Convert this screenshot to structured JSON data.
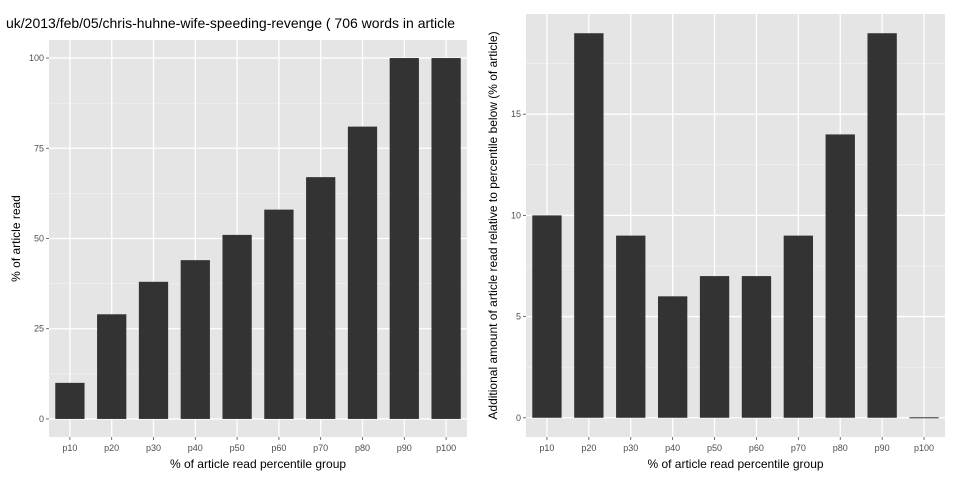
{
  "chart_data": [
    {
      "type": "bar",
      "title": "uk/2013/feb/05/chris-huhne-wife-speeding-revenge ( 706 words in article",
      "xlabel": "% of article read percentile group",
      "ylabel": "% of article read",
      "categories": [
        "p10",
        "p20",
        "p30",
        "p40",
        "p50",
        "p60",
        "p70",
        "p80",
        "p90",
        "p100"
      ],
      "values": [
        10,
        29,
        38,
        44,
        51,
        58,
        67,
        81,
        100,
        100
      ],
      "ylim": [
        -5,
        105
      ],
      "yticks": [
        0,
        25,
        50,
        75,
        100
      ],
      "grid": true,
      "colors": {
        "panel": "#e5e5e5",
        "grid": "#ffffff",
        "bar": "#333333",
        "tick": "#4d4d4d"
      }
    },
    {
      "type": "bar",
      "title": "",
      "xlabel": "% of article read percentile group",
      "ylabel": "Additional amount of article read relative to percentile below (% of article)",
      "categories": [
        "p10",
        "p20",
        "p30",
        "p40",
        "p50",
        "p60",
        "p70",
        "p80",
        "p90",
        "p100"
      ],
      "values": [
        10,
        19,
        9,
        6,
        7,
        7,
        9,
        14,
        19,
        0
      ],
      "ylim": [
        -0.95,
        19.95
      ],
      "yticks": [
        0,
        5,
        10,
        15
      ],
      "grid": true,
      "colors": {
        "panel": "#e5e5e5",
        "grid": "#ffffff",
        "bar": "#333333",
        "tick": "#4d4d4d"
      }
    }
  ]
}
